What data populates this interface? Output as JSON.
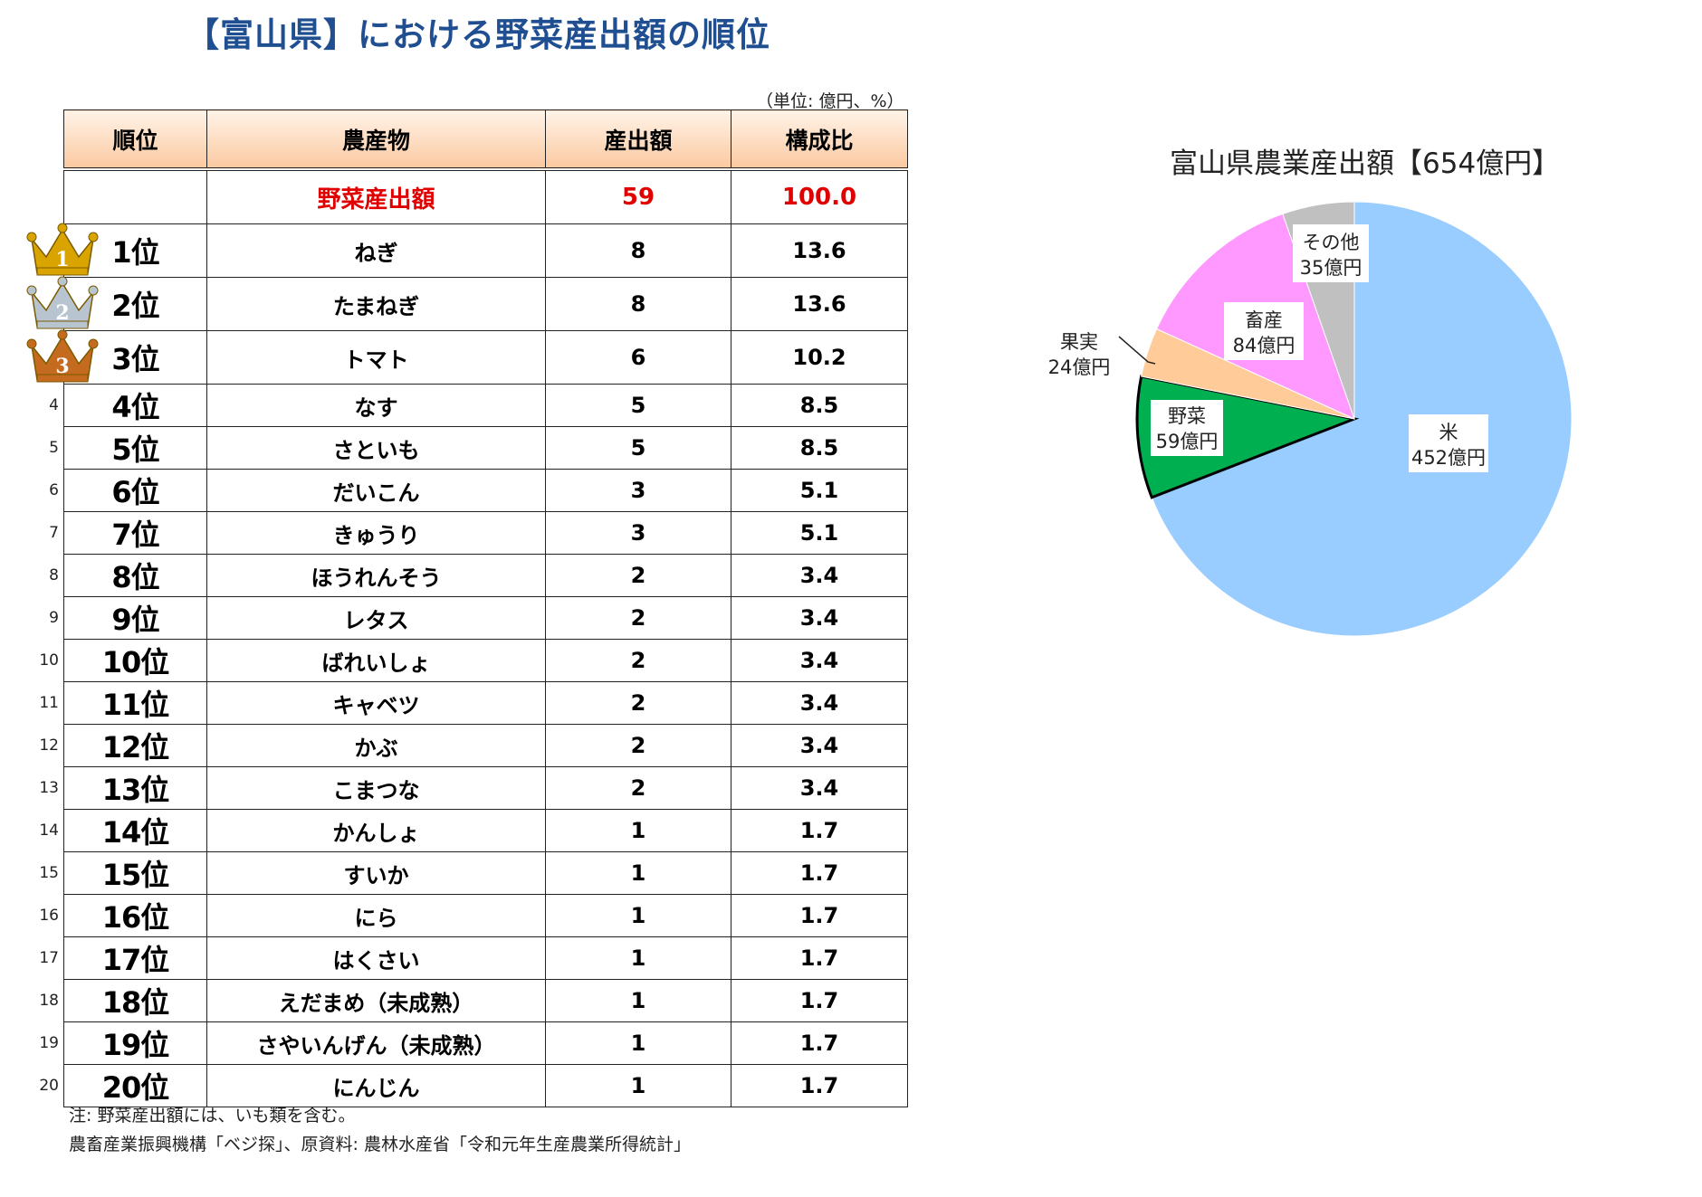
{
  "title": "【富山県】における野菜産出額の順位",
  "unit_note": "（単位: 億円、%）",
  "table": {
    "headers": [
      "順位",
      "農産物",
      "産出額",
      "構成比"
    ],
    "total": {
      "crop": "野菜産出額",
      "value": "59",
      "ratio": "100.0"
    },
    "rows": [
      {
        "rank": "1位",
        "crop": "ねぎ",
        "value": "8",
        "ratio": "13.6",
        "num": "1"
      },
      {
        "rank": "2位",
        "crop": "たまねぎ",
        "value": "8",
        "ratio": "13.6",
        "num": "2"
      },
      {
        "rank": "3位",
        "crop": "トマト",
        "value": "6",
        "ratio": "10.2",
        "num": "3"
      },
      {
        "rank": "4位",
        "crop": "なす",
        "value": "5",
        "ratio": "8.5",
        "num": "4"
      },
      {
        "rank": "5位",
        "crop": "さといも",
        "value": "5",
        "ratio": "8.5",
        "num": "5"
      },
      {
        "rank": "6位",
        "crop": "だいこん",
        "value": "3",
        "ratio": "5.1",
        "num": "6"
      },
      {
        "rank": "7位",
        "crop": "きゅうり",
        "value": "3",
        "ratio": "5.1",
        "num": "7"
      },
      {
        "rank": "8位",
        "crop": "ほうれんそう",
        "value": "2",
        "ratio": "3.4",
        "num": "8"
      },
      {
        "rank": "9位",
        "crop": "レタス",
        "value": "2",
        "ratio": "3.4",
        "num": "9"
      },
      {
        "rank": "10位",
        "crop": "ばれいしょ",
        "value": "2",
        "ratio": "3.4",
        "num": "10"
      },
      {
        "rank": "11位",
        "crop": "キャベツ",
        "value": "2",
        "ratio": "3.4",
        "num": "11"
      },
      {
        "rank": "12位",
        "crop": "かぶ",
        "value": "2",
        "ratio": "3.4",
        "num": "12"
      },
      {
        "rank": "13位",
        "crop": "こまつな",
        "value": "2",
        "ratio": "3.4",
        "num": "13"
      },
      {
        "rank": "14位",
        "crop": "かんしょ",
        "value": "1",
        "ratio": "1.7",
        "num": "14"
      },
      {
        "rank": "15位",
        "crop": "すいか",
        "value": "1",
        "ratio": "1.7",
        "num": "15"
      },
      {
        "rank": "16位",
        "crop": "にら",
        "value": "1",
        "ratio": "1.7",
        "num": "16"
      },
      {
        "rank": "17位",
        "crop": "はくさい",
        "value": "1",
        "ratio": "1.7",
        "num": "17"
      },
      {
        "rank": "18位",
        "crop": "えだまめ（未成熟）",
        "value": "1",
        "ratio": "1.7",
        "num": "18"
      },
      {
        "rank": "19位",
        "crop": "さやいんげん（未成熟）",
        "value": "1",
        "ratio": "1.7",
        "num": "19"
      },
      {
        "rank": "20位",
        "crop": "にんじん",
        "value": "1",
        "ratio": "1.7",
        "num": "20"
      }
    ]
  },
  "note": "注: 野菜産出額には、いも類を含む。",
  "source": "農畜産業振興機構「ベジ探」、原資料: 農林水産省「令和元年生産農業所得統計」",
  "chart_data": {
    "type": "pie",
    "title": "富山県農業産出額【654億円】",
    "slices": [
      {
        "name": "米",
        "value": 452,
        "label": "452億円",
        "color": "#99ccff"
      },
      {
        "name": "野菜",
        "value": 59,
        "label": "59億円",
        "color": "#00b050"
      },
      {
        "name": "果実",
        "value": 24,
        "label": "24億円",
        "color": "#ffcc99"
      },
      {
        "name": "畜産",
        "value": 84,
        "label": "84億円",
        "color": "#ff99ff"
      },
      {
        "name": "その他",
        "value": 35,
        "label": "35億円",
        "color": "#c0c0c0"
      }
    ]
  },
  "crowns": {
    "gold": "#d9a400",
    "silver": "#b8c4cf",
    "bronze": "#c46b1f"
  }
}
